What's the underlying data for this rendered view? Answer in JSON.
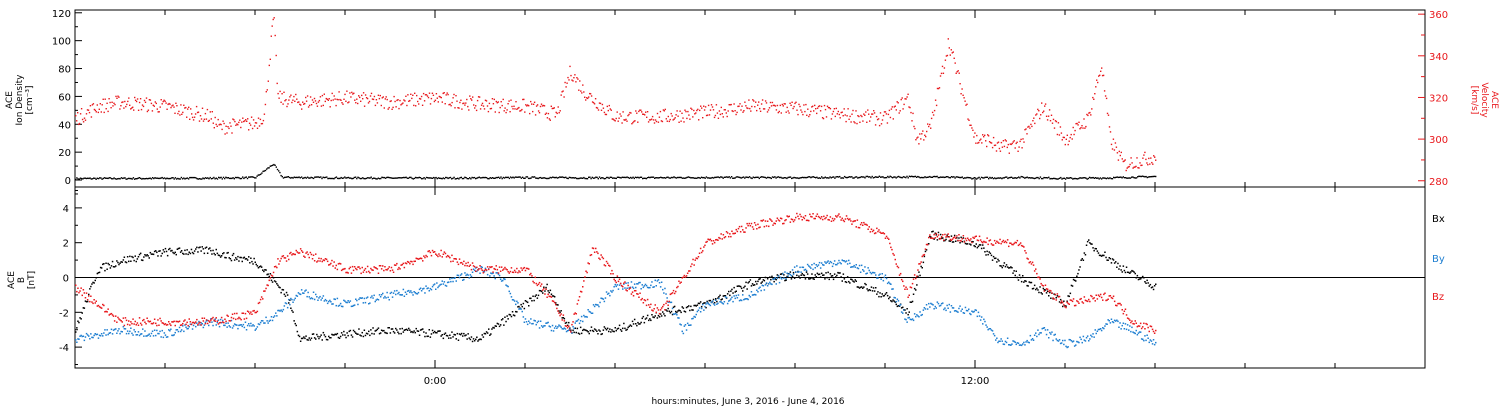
{
  "chart_data": {
    "type": "scatter",
    "x_label": "hours:minutes, June  3, 2016 - June  4, 2016",
    "x_ticks": [
      "0:00",
      "12:00"
    ],
    "x_range_hours": [
      -8,
      22
    ],
    "data_end_hours": 16,
    "colors": {
      "black": "#000000",
      "red": "#e8181c",
      "blue": "#1f7fd1"
    },
    "top_panel": {
      "y_label_left": [
        "ACE",
        "Ion Density",
        "[cm⁻³]"
      ],
      "y_label_right": [
        "ACE",
        "Velocity",
        "[km/s]"
      ],
      "left_axis": {
        "range": [
          -5,
          122
        ],
        "ticks": [
          "0",
          "20",
          "40",
          "60",
          "80",
          "100",
          "120"
        ],
        "tick_values": [
          0,
          20,
          40,
          60,
          80,
          100,
          120
        ]
      },
      "right_axis": {
        "range": [
          277,
          362
        ],
        "ticks": [
          "280",
          "300",
          "320",
          "340",
          "360"
        ],
        "tick_values": [
          280,
          300,
          320,
          340,
          360
        ]
      },
      "series": [
        {
          "id": "density",
          "color": "black",
          "axis": "left",
          "points": [
            [
              -8,
              1.5
            ],
            [
              -5,
              1.8
            ],
            [
              -4,
              2.2
            ],
            [
              -3.6,
              12
            ],
            [
              -3.4,
              2.4
            ],
            [
              -2,
              2.0
            ],
            [
              0,
              1.8
            ],
            [
              2,
              2.2
            ],
            [
              4,
              2.0
            ],
            [
              6,
              2.3
            ],
            [
              8,
              2.2
            ],
            [
              10,
              2.6
            ],
            [
              11,
              2.8
            ],
            [
              12,
              1.8
            ],
            [
              13,
              2.4
            ],
            [
              14,
              1.6
            ],
            [
              15,
              2.0
            ],
            [
              16,
              3.0
            ]
          ]
        },
        {
          "id": "velocity",
          "color": "red",
          "axis": "right",
          "points": [
            [
              -8,
              310
            ],
            [
              -7.5,
              316
            ],
            [
              -7,
              318
            ],
            [
              -6,
              316
            ],
            [
              -5,
              311
            ],
            [
              -4.8,
              306
            ],
            [
              -4,
              308
            ],
            [
              -3.8,
              312
            ],
            [
              -3.6,
              360
            ],
            [
              -3.5,
              320
            ],
            [
              -3,
              318
            ],
            [
              -2,
              320
            ],
            [
              -1,
              318
            ],
            [
              0,
              320
            ],
            [
              1,
              317
            ],
            [
              2,
              316
            ],
            [
              2.7,
              312
            ],
            [
              3,
              333
            ],
            [
              3.3,
              323
            ],
            [
              4,
              311
            ],
            [
              5,
              311
            ],
            [
              6,
              313
            ],
            [
              7,
              316
            ],
            [
              8,
              315
            ],
            [
              9,
              312
            ],
            [
              10,
              310
            ],
            [
              10.5,
              320
            ],
            [
              10.7,
              300
            ],
            [
              11,
              306
            ],
            [
              11.4,
              347
            ],
            [
              12,
              300
            ],
            [
              12.3,
              300
            ],
            [
              12.5,
              296
            ],
            [
              13,
              298
            ],
            [
              13.5,
              316
            ],
            [
              14,
              300
            ],
            [
              14.5,
              310
            ],
            [
              14.8,
              336
            ],
            [
              15,
              300
            ],
            [
              15.3,
              288
            ],
            [
              16,
              292
            ]
          ]
        }
      ]
    },
    "bottom_panel": {
      "y_label_left": [
        "ACE",
        "B",
        "[nT]"
      ],
      "y_range": [
        -5.2,
        5.2
      ],
      "y_ticks": [
        "4",
        "2",
        "0",
        "-2",
        "-4"
      ],
      "y_tick_values": [
        4,
        2,
        0,
        -2,
        -4
      ],
      "zero_line": 0,
      "legend": [
        "Bx",
        "By",
        "Bz"
      ],
      "series": [
        {
          "name": "Bx",
          "color": "black",
          "points": [
            [
              -8,
              -3.0
            ],
            [
              -7.5,
              0.5
            ],
            [
              -7,
              1.0
            ],
            [
              -6,
              1.5
            ],
            [
              -5,
              1.6
            ],
            [
              -4.5,
              1.2
            ],
            [
              -4,
              1.0
            ],
            [
              -3.3,
              -1.0
            ],
            [
              -3,
              -3.5
            ],
            [
              -2,
              -3.2
            ],
            [
              -1,
              -3.0
            ],
            [
              0,
              -3.2
            ],
            [
              1,
              -3.5
            ],
            [
              2,
              -1.5
            ],
            [
              2.5,
              -0.5
            ],
            [
              3,
              -3.0
            ],
            [
              4,
              -3.0
            ],
            [
              5,
              -2.0
            ],
            [
              6,
              -1.5
            ],
            [
              7,
              -0.3
            ],
            [
              8,
              0.2
            ],
            [
              9,
              0.1
            ],
            [
              10,
              -1.0
            ],
            [
              10.5,
              -2.0
            ],
            [
              11,
              2.5
            ],
            [
              12,
              2.0
            ],
            [
              13,
              0.0
            ],
            [
              14,
              -1.5
            ],
            [
              14.5,
              2.0
            ],
            [
              15.3,
              0.5
            ],
            [
              16,
              -0.5
            ]
          ]
        },
        {
          "name": "By",
          "color": "blue",
          "points": [
            [
              -8,
              -3.5
            ],
            [
              -7,
              -3.0
            ],
            [
              -6,
              -3.2
            ],
            [
              -5,
              -2.5
            ],
            [
              -4,
              -2.8
            ],
            [
              -3.5,
              -2.0
            ],
            [
              -3,
              -0.8
            ],
            [
              -2,
              -1.5
            ],
            [
              -1,
              -1.0
            ],
            [
              0,
              -0.5
            ],
            [
              1,
              0.5
            ],
            [
              1.5,
              0.0
            ],
            [
              2,
              -2.5
            ],
            [
              3,
              -3.0
            ],
            [
              4,
              -0.5
            ],
            [
              5,
              -0.3
            ],
            [
              5.5,
              -3.0
            ],
            [
              6,
              -1.5
            ],
            [
              7,
              -1.0
            ],
            [
              8,
              0.5
            ],
            [
              9,
              1.0
            ],
            [
              10,
              0.0
            ],
            [
              10.5,
              -2.5
            ],
            [
              11,
              -1.5
            ],
            [
              12,
              -2.0
            ],
            [
              12.5,
              -3.5
            ],
            [
              13,
              -3.8
            ],
            [
              13.5,
              -3.0
            ],
            [
              14,
              -3.8
            ],
            [
              14.5,
              -3.5
            ],
            [
              15,
              -2.5
            ],
            [
              15.5,
              -3.0
            ],
            [
              16,
              -3.8
            ]
          ]
        },
        {
          "name": "Bz",
          "color": "red",
          "points": [
            [
              -8,
              -0.5
            ],
            [
              -7,
              -2.5
            ],
            [
              -6,
              -2.5
            ],
            [
              -5,
              -2.5
            ],
            [
              -4,
              -2.0
            ],
            [
              -3.5,
              1.0
            ],
            [
              -3,
              1.5
            ],
            [
              -2,
              0.5
            ],
            [
              -1,
              0.5
            ],
            [
              0,
              1.5
            ],
            [
              1,
              0.5
            ],
            [
              2,
              0.5
            ],
            [
              2.5,
              -1.0
            ],
            [
              3,
              -3.0
            ],
            [
              3.5,
              1.8
            ],
            [
              4,
              0.0
            ],
            [
              5,
              -2.0
            ],
            [
              6,
              2.0
            ],
            [
              7,
              3.0
            ],
            [
              8,
              3.5
            ],
            [
              9,
              3.5
            ],
            [
              10,
              2.5
            ],
            [
              10.5,
              -1.0
            ],
            [
              11,
              2.5
            ],
            [
              12,
              2.2
            ],
            [
              13,
              2.0
            ],
            [
              13.5,
              -0.5
            ],
            [
              14,
              -1.5
            ],
            [
              15,
              -1.0
            ],
            [
              15.5,
              -2.5
            ],
            [
              16,
              -3.0
            ]
          ]
        }
      ]
    }
  }
}
